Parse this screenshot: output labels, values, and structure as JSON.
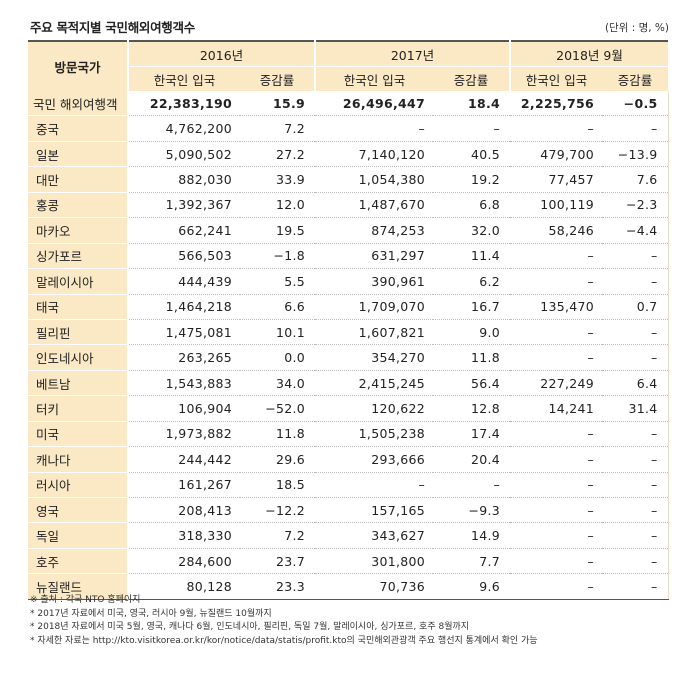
{
  "title": "주요 목적지별 국민해외여행객수",
  "unit": "(단위 : 명, %)",
  "header": {
    "country": "방문국가",
    "years": [
      "2016년",
      "2017년",
      "2018년 9월"
    ],
    "sub_arrivals": "한국인 입국",
    "sub_rate": "증감률"
  },
  "rows": [
    {
      "name": "국민 해외여행객",
      "v": [
        "22,383,190",
        "15.9",
        "26,496,447",
        "18.4",
        "2,225,756",
        "−0.5"
      ]
    },
    {
      "name": "중국",
      "v": [
        "4,762,200",
        "7.2",
        "–",
        "–",
        "–",
        "–"
      ]
    },
    {
      "name": "일본",
      "v": [
        "5,090,502",
        "27.2",
        "7,140,120",
        "40.5",
        "479,700",
        "−13.9"
      ]
    },
    {
      "name": "대만",
      "v": [
        "882,030",
        "33.9",
        "1,054,380",
        "19.2",
        "77,457",
        "7.6"
      ]
    },
    {
      "name": "홍콩",
      "v": [
        "1,392,367",
        "12.0",
        "1,487,670",
        "6.8",
        "100,119",
        "−2.3"
      ]
    },
    {
      "name": "마카오",
      "v": [
        "662,241",
        "19.5",
        "874,253",
        "32.0",
        "58,246",
        "−4.4"
      ]
    },
    {
      "name": "싱가포르",
      "v": [
        "566,503",
        "−1.8",
        "631,297",
        "11.4",
        "–",
        "–"
      ]
    },
    {
      "name": "말레이시아",
      "v": [
        "444,439",
        "5.5",
        "390,961",
        "6.2",
        "–",
        "–"
      ]
    },
    {
      "name": "태국",
      "v": [
        "1,464,218",
        "6.6",
        "1,709,070",
        "16.7",
        "135,470",
        "0.7"
      ]
    },
    {
      "name": "필리핀",
      "v": [
        "1,475,081",
        "10.1",
        "1,607,821",
        "9.0",
        "–",
        "–"
      ]
    },
    {
      "name": "인도네시아",
      "v": [
        "263,265",
        "0.0",
        "354,270",
        "11.8",
        "–",
        "–"
      ]
    },
    {
      "name": "베트남",
      "v": [
        "1,543,883",
        "34.0",
        "2,415,245",
        "56.4",
        "227,249",
        "6.4"
      ]
    },
    {
      "name": "터키",
      "v": [
        "106,904",
        "−52.0",
        "120,622",
        "12.8",
        "14,241",
        "31.4"
      ]
    },
    {
      "name": "미국",
      "v": [
        "1,973,882",
        "11.8",
        "1,505,238",
        "17.4",
        "–",
        "–"
      ]
    },
    {
      "name": "캐나다",
      "v": [
        "244,442",
        "29.6",
        "293,666",
        "20.4",
        "–",
        "–"
      ]
    },
    {
      "name": "러시아",
      "v": [
        "161,267",
        "18.5",
        "–",
        "–",
        "–",
        "–"
      ]
    },
    {
      "name": "영국",
      "v": [
        "208,413",
        "−12.2",
        "157,165",
        "−9.3",
        "–",
        "–"
      ]
    },
    {
      "name": "독일",
      "v": [
        "318,330",
        "7.2",
        "343,627",
        "14.9",
        "–",
        "–"
      ]
    },
    {
      "name": "호주",
      "v": [
        "284,600",
        "23.7",
        "301,800",
        "7.7",
        "–",
        "–"
      ]
    },
    {
      "name": "뉴질랜드",
      "v": [
        "80,128",
        "23.3",
        "70,736",
        "9.6",
        "–",
        "–"
      ]
    }
  ],
  "notes": [
    "※ 출처 : 각국 NTO 홈페이지",
    "* 2017년 자료에서 미국, 영국, 러시아 9월, 뉴질랜드 10월까지",
    "* 2018년 자료에서 미국 5월, 영국, 캐나다 6월, 인도네시아, 필리핀, 독일 7월, 말레이시아, 싱가포르, 호주 8월까지",
    "* 자세한 자료는 http://kto.visitkorea.or.kr/kor/notice/data/statis/profit.kto의 국민해외관광객 주요 행선지 통계에서 확인 가능"
  ]
}
